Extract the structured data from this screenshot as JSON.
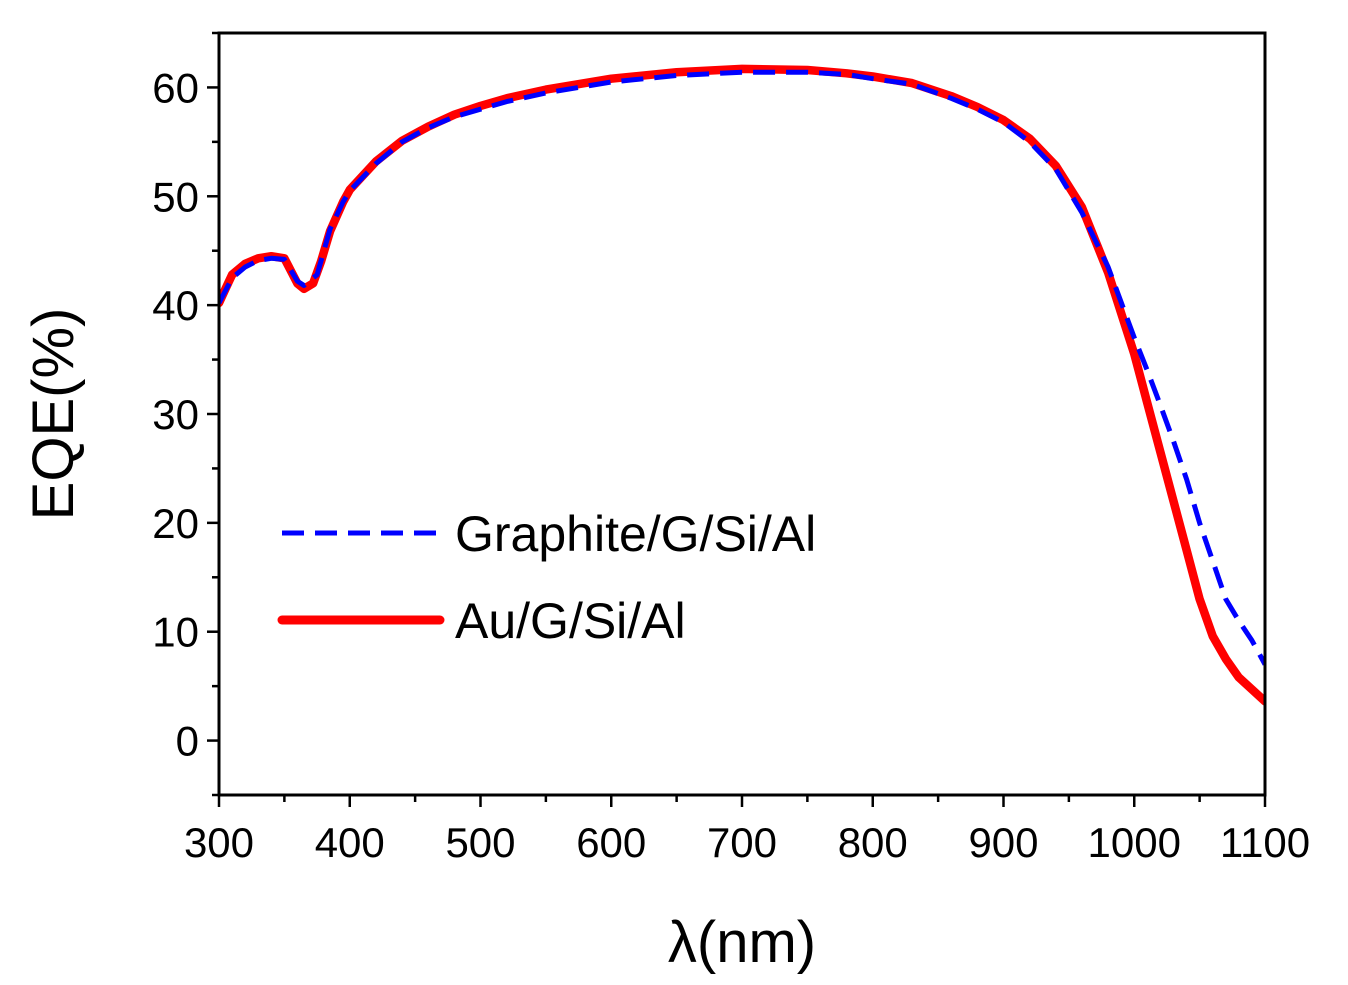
{
  "chart_data": {
    "type": "line",
    "title": "",
    "xlabel": "λ(nm)",
    "ylabel": "EQE(%)",
    "xlim": [
      300,
      1100
    ],
    "ylim": [
      -5,
      65
    ],
    "xticks": [
      300,
      400,
      500,
      600,
      700,
      800,
      900,
      1000,
      1100
    ],
    "yticks": [
      0,
      10,
      20,
      30,
      40,
      50,
      60
    ],
    "xtick_labels": [
      "300",
      "400",
      "500",
      "600",
      "700",
      "800",
      "900",
      "1000",
      "1100"
    ],
    "ytick_labels": [
      "0",
      "10",
      "20",
      "30",
      "40",
      "50",
      "60"
    ],
    "grid": false,
    "legend_position": "left-middle",
    "series": [
      {
        "name": "Graphite/G/Si/Al",
        "color": "#0000ff",
        "style": "dashed",
        "points": [
          [
            300,
            40.2
          ],
          [
            310,
            42.5
          ],
          [
            320,
            43.5
          ],
          [
            330,
            44.1
          ],
          [
            340,
            44.3
          ],
          [
            350,
            44.2
          ],
          [
            360,
            42.2
          ],
          [
            365,
            41.8
          ],
          [
            375,
            42.8
          ],
          [
            385,
            47.0
          ],
          [
            395,
            49.5
          ],
          [
            400,
            50.5
          ],
          [
            420,
            53.0
          ],
          [
            440,
            55.0
          ],
          [
            460,
            56.3
          ],
          [
            480,
            57.3
          ],
          [
            500,
            58.0
          ],
          [
            520,
            58.7
          ],
          [
            550,
            59.5
          ],
          [
            600,
            60.5
          ],
          [
            650,
            61.1
          ],
          [
            700,
            61.4
          ],
          [
            750,
            61.4
          ],
          [
            780,
            61.2
          ],
          [
            800,
            60.8
          ],
          [
            830,
            60.3
          ],
          [
            860,
            59.0
          ],
          [
            880,
            58.0
          ],
          [
            900,
            56.8
          ],
          [
            920,
            55.0
          ],
          [
            940,
            52.5
          ],
          [
            960,
            48.5
          ],
          [
            980,
            43.5
          ],
          [
            1000,
            37.0
          ],
          [
            1010,
            34.0
          ],
          [
            1020,
            30.8
          ],
          [
            1030,
            27.5
          ],
          [
            1040,
            24.0
          ],
          [
            1050,
            20.0
          ],
          [
            1060,
            16.5
          ],
          [
            1070,
            13.0
          ],
          [
            1080,
            11.0
          ],
          [
            1090,
            9.2
          ],
          [
            1100,
            7.0
          ]
        ]
      },
      {
        "name": "Au/G/Si/Al",
        "color": "#ff0000",
        "style": "solid",
        "points": [
          [
            300,
            40.2
          ],
          [
            305,
            41.5
          ],
          [
            310,
            42.8
          ],
          [
            320,
            43.8
          ],
          [
            330,
            44.3
          ],
          [
            340,
            44.5
          ],
          [
            350,
            44.3
          ],
          [
            360,
            42.0
          ],
          [
            365,
            41.5
          ],
          [
            372,
            42.0
          ],
          [
            378,
            44.0
          ],
          [
            385,
            46.8
          ],
          [
            395,
            49.5
          ],
          [
            400,
            50.6
          ],
          [
            420,
            53.2
          ],
          [
            440,
            55.1
          ],
          [
            460,
            56.4
          ],
          [
            480,
            57.5
          ],
          [
            500,
            58.3
          ],
          [
            520,
            59.0
          ],
          [
            550,
            59.8
          ],
          [
            600,
            60.8
          ],
          [
            650,
            61.4
          ],
          [
            700,
            61.7
          ],
          [
            750,
            61.6
          ],
          [
            780,
            61.3
          ],
          [
            800,
            61.0
          ],
          [
            830,
            60.4
          ],
          [
            860,
            59.2
          ],
          [
            880,
            58.2
          ],
          [
            900,
            57.0
          ],
          [
            920,
            55.3
          ],
          [
            940,
            52.8
          ],
          [
            960,
            49.0
          ],
          [
            980,
            43.0
          ],
          [
            1000,
            35.5
          ],
          [
            1010,
            31.0
          ],
          [
            1020,
            26.5
          ],
          [
            1030,
            22.0
          ],
          [
            1040,
            17.5
          ],
          [
            1050,
            13.0
          ],
          [
            1060,
            9.6
          ],
          [
            1070,
            7.5
          ],
          [
            1080,
            5.8
          ],
          [
            1090,
            4.7
          ],
          [
            1100,
            3.6
          ]
        ]
      }
    ]
  }
}
